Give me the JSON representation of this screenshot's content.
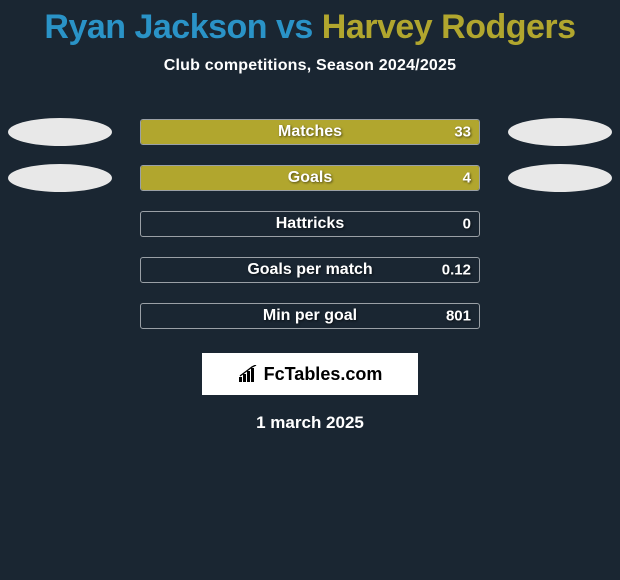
{
  "colors": {
    "background": "#1a2632",
    "player1": "#2a93c7",
    "player2": "#b1a62e",
    "bar_fill": "#b1a62e",
    "oval": "#e8e8e8",
    "border": "#9aa0a6",
    "text_light": "#ffffff",
    "fct_bg": "#ffffff",
    "fct_text": "#000000"
  },
  "typography": {
    "title_fontsize": 34,
    "subtitle_fontsize": 16,
    "barlabel_fontsize": 16,
    "barvalue_fontsize": 15,
    "footer_fontsize": 17
  },
  "header": {
    "player1": "Ryan Jackson",
    "vs": " vs ",
    "player2": "Harvey Rodgers",
    "subtitle": "Club competitions, Season 2024/2025"
  },
  "stats": [
    {
      "label": "Matches",
      "value": "33",
      "fill_pct": 100,
      "left_oval": true,
      "right_oval": true
    },
    {
      "label": "Goals",
      "value": "4",
      "fill_pct": 100,
      "left_oval": true,
      "right_oval": true
    },
    {
      "label": "Hattricks",
      "value": "0",
      "fill_pct": 0,
      "left_oval": false,
      "right_oval": false
    },
    {
      "label": "Goals per match",
      "value": "0.12",
      "fill_pct": 0,
      "left_oval": false,
      "right_oval": false
    },
    {
      "label": "Min per goal",
      "value": "801",
      "fill_pct": 0,
      "left_oval": false,
      "right_oval": false
    }
  ],
  "branding": {
    "label": "FcTables.com"
  },
  "footer": {
    "date": "1 march 2025"
  }
}
